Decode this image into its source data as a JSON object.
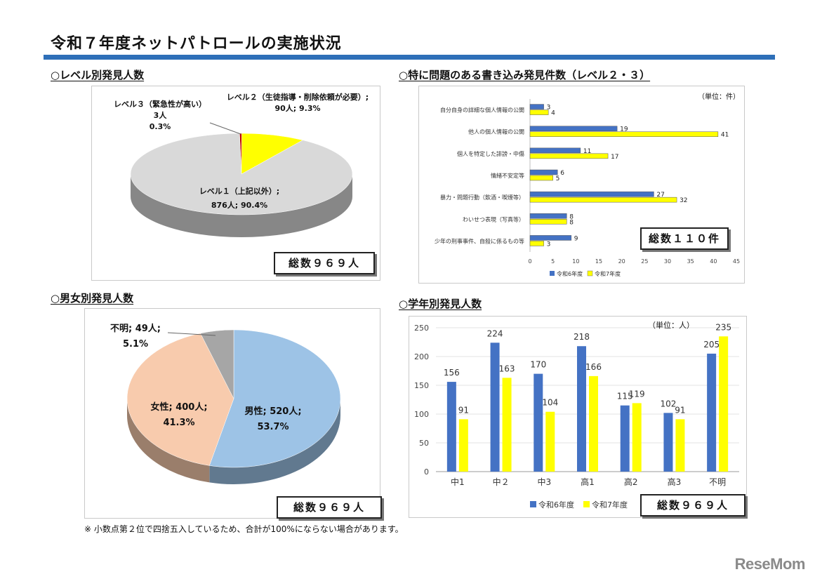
{
  "page_title": "令和７年度ネットパトロールの実施状況",
  "footnote": "※ 小数点第２位で四捨五入しているため、合計が100%にならない場合があります。",
  "brand": "ReseMom",
  "colors": {
    "title_rule": "#2e6fb8",
    "series_r6": "#4472c4",
    "series_r7": "#ffff00",
    "level1": "#d9d9d9",
    "level2": "#ffff00",
    "level3": "#c00000",
    "male": "#9dc3e6",
    "female": "#f8cbad",
    "unknown": "#a6a6a6"
  },
  "level_section": {
    "heading": "○レベル別発見人数",
    "label_l3": {
      "name": "レベル３（緊急性が高い）",
      "count": "3人",
      "pct": "0.3%"
    },
    "label_l2": {
      "name": "レベル２（生徒指導・削除依頼が必要）;",
      "value": "90人; 9.3%"
    },
    "label_l1": {
      "name": "レベル１（上記以外）;",
      "value": "876人; 90.4%"
    },
    "total": "総数９６９人"
  },
  "problem_section": {
    "heading": "○特に問題のある書き込み発見件数（レベル２・３）",
    "unit": "（単位：件）",
    "total": "総数１１０件"
  },
  "gender_section": {
    "heading": "○男女別発見人数",
    "label_unknown": {
      "name": "不明; 49人;",
      "pct": "5.1%"
    },
    "label_female": {
      "name": "女性; 400人;",
      "pct": "41.3%"
    },
    "label_male": {
      "name": "男性; 520人;",
      "pct": "53.7%"
    },
    "total": "総数９６９人"
  },
  "grade_section": {
    "heading": "○学年別発見人数",
    "unit": "（単位：人）",
    "total": "総数９６９人"
  },
  "chart_data": [
    {
      "type": "pie",
      "title": "",
      "categories": [
        "レベル１（上記以外）",
        "レベル２（生徒指導・削除依頼が必要）",
        "レベル３（緊急性が高い）"
      ],
      "values": [
        876,
        90,
        3
      ],
      "percents": [
        90.4,
        9.3,
        0.3
      ]
    },
    {
      "type": "bar",
      "orientation": "horizontal",
      "categories": [
        "自分自身の詳細な個人情報の公開",
        "他人の個人情報の公開",
        "個人を特定した誹謗・中傷",
        "情緒不安定等",
        "暴力・問題行動（飲酒・喫煙等）",
        "わいせつ表現（写真等）",
        "少年の刑事事件、自殺に係るもの等"
      ],
      "series": [
        {
          "name": "令和6年度",
          "values": [
            3,
            19,
            11,
            6,
            27,
            8,
            9
          ]
        },
        {
          "name": "令和7年度",
          "values": [
            4,
            41,
            17,
            5,
            32,
            8,
            3
          ]
        }
      ],
      "xlim": [
        0,
        45
      ],
      "xticks": [
        0,
        5,
        10,
        15,
        20,
        25,
        30,
        35,
        40,
        45
      ],
      "legend": "bottom"
    },
    {
      "type": "pie",
      "categories": [
        "男性",
        "女性",
        "不明"
      ],
      "values": [
        520,
        400,
        49
      ],
      "percents": [
        53.7,
        41.3,
        5.1
      ]
    },
    {
      "type": "bar",
      "categories": [
        "中1",
        "中２",
        "中3",
        "高1",
        "高2",
        "高3",
        "不明"
      ],
      "series": [
        {
          "name": "令和6年度",
          "values": [
            156,
            224,
            170,
            218,
            115,
            102,
            205
          ]
        },
        {
          "name": "令和7年度",
          "values": [
            91,
            163,
            104,
            166,
            119,
            91,
            235
          ]
        }
      ],
      "ylim": [
        0,
        250
      ],
      "yticks": [
        0,
        50,
        100,
        150,
        200,
        250
      ],
      "legend": "bottom"
    }
  ]
}
